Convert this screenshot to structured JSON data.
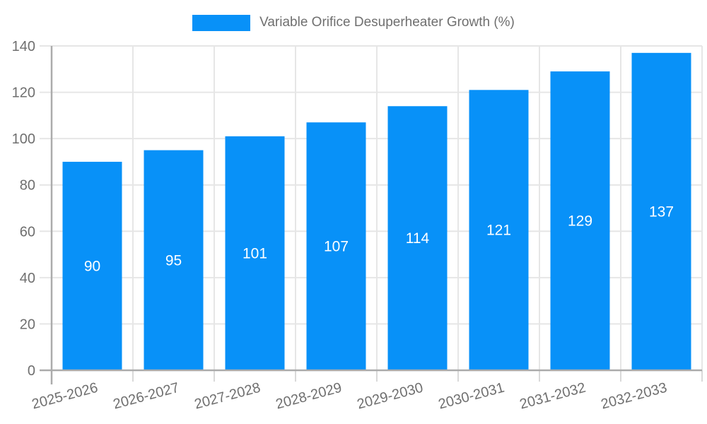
{
  "chart_data": {
    "type": "bar",
    "legend_label": "Variable Orifice Desuperheater Growth (%)",
    "categories": [
      "2025-2026",
      "2026-2027",
      "2027-2028",
      "2028-2029",
      "2029-2030",
      "2030-2031",
      "2031-2032",
      "2032-2033"
    ],
    "values": [
      90,
      95,
      101,
      107,
      114,
      121,
      129,
      137
    ],
    "xlabel": "",
    "ylabel": "",
    "ylim": [
      0,
      140
    ],
    "ytick_step": 20,
    "ytick_labels": [
      "0",
      "20",
      "40",
      "60",
      "80",
      "100",
      "120",
      "140"
    ],
    "grid": true,
    "legend_position": "top",
    "x_label_rotation_deg": -15,
    "colors": {
      "bar": "#0891f8",
      "bar_value_label": "#ffffff",
      "axis_text": "#6f6f6f",
      "axis_line": "#ababab",
      "grid_line": "#e6e6e6",
      "boundary_tick": "#d9d9d9",
      "background": "#ffffff"
    }
  }
}
